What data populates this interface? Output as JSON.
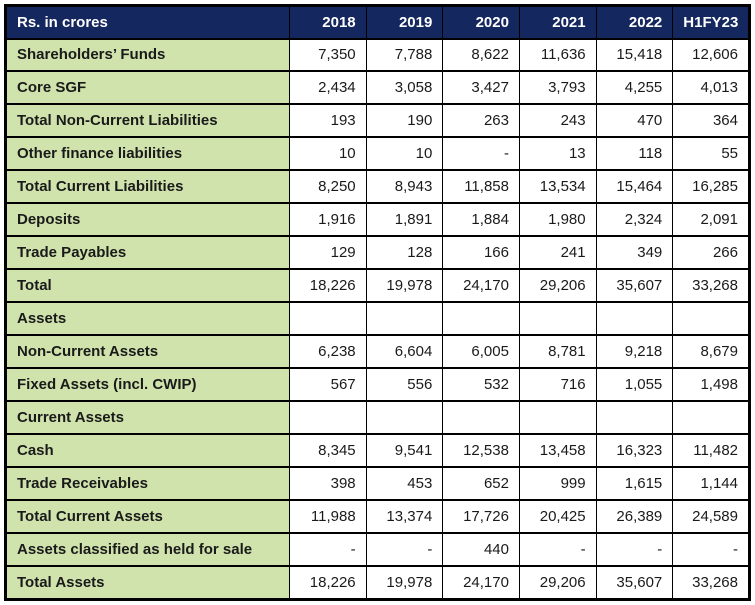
{
  "colors": {
    "header_bg": "#14275E",
    "header_text": "#FFFFFF",
    "label_bg": "#D0E3AC",
    "cell_bg": "#FFFFFF",
    "border": "#000000",
    "text": "#1A1A1A"
  },
  "chart_data": {
    "type": "table",
    "title": "Rs. in crores",
    "columns": [
      "2018",
      "2019",
      "2020",
      "2021",
      "2022",
      "H1FY23"
    ],
    "rows": [
      {
        "label": "Shareholders’ Funds",
        "values": [
          "7,350",
          "7,788",
          "8,622",
          "11,636",
          "15,418",
          "12,606"
        ]
      },
      {
        "label": "Core SGF",
        "values": [
          "2,434",
          "3,058",
          "3,427",
          "3,793",
          "4,255",
          "4,013"
        ]
      },
      {
        "label": "Total Non-Current Liabilities",
        "values": [
          "193",
          "190",
          "263",
          "243",
          "470",
          "364"
        ]
      },
      {
        "label": "Other finance liabilities",
        "values": [
          "10",
          "10",
          "-",
          "13",
          "118",
          "55"
        ]
      },
      {
        "label": "Total Current Liabilities",
        "values": [
          "8,250",
          "8,943",
          "11,858",
          "13,534",
          "15,464",
          "16,285"
        ]
      },
      {
        "label": "Deposits",
        "values": [
          "1,916",
          "1,891",
          "1,884",
          "1,980",
          "2,324",
          "2,091"
        ]
      },
      {
        "label": "Trade Payables",
        "values": [
          "129",
          "128",
          "166",
          "241",
          "349",
          "266"
        ]
      },
      {
        "label": "Total",
        "values": [
          "18,226",
          "19,978",
          "24,170",
          "29,206",
          "35,607",
          "33,268"
        ]
      },
      {
        "label": "Assets",
        "values": [
          "",
          "",
          "",
          "",
          "",
          ""
        ],
        "section": true
      },
      {
        "label": "Non-Current Assets",
        "values": [
          "6,238",
          "6,604",
          "6,005",
          "8,781",
          "9,218",
          "8,679"
        ]
      },
      {
        "label": "Fixed Assets (incl. CWIP)",
        "values": [
          "567",
          "556",
          "532",
          "716",
          "1,055",
          "1,498"
        ]
      },
      {
        "label": "Current Assets",
        "values": [
          "",
          "",
          "",
          "",
          "",
          ""
        ],
        "section": true
      },
      {
        "label": "Cash",
        "values": [
          "8,345",
          "9,541",
          "12,538",
          "13,458",
          "16,323",
          "11,482"
        ]
      },
      {
        "label": "Trade Receivables",
        "values": [
          "398",
          "453",
          "652",
          "999",
          "1,615",
          "1,144"
        ]
      },
      {
        "label": "Total Current Assets",
        "values": [
          "11,988",
          "13,374",
          "17,726",
          "20,425",
          "26,389",
          "24,589"
        ]
      },
      {
        "label": "Assets classified as held for sale",
        "values": [
          "-",
          "-",
          "440",
          "-",
          "-",
          "-"
        ]
      },
      {
        "label": "Total Assets",
        "values": [
          "18,226",
          "19,978",
          "24,170",
          "29,206",
          "35,607",
          "33,268"
        ]
      }
    ]
  }
}
